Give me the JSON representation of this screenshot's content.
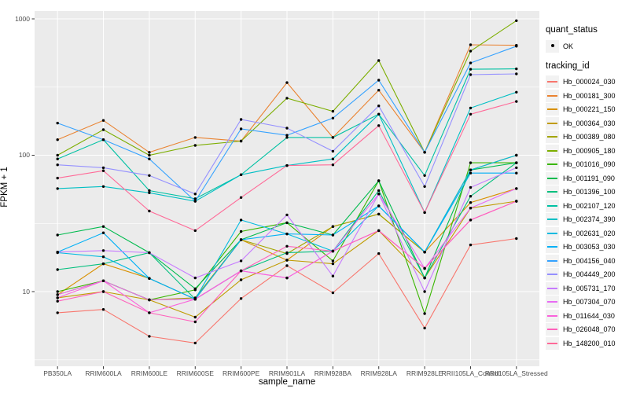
{
  "chart": {
    "y_axis_title": "FPKM + 1",
    "x_axis_title": "sample_name",
    "y_ticks": [
      "1000",
      "100",
      "10"
    ]
  },
  "legend": {
    "quant_status_title": "quant_status",
    "quant_ok_label": "OK",
    "tracking_id_title": "tracking_id"
  },
  "chart_data": {
    "type": "line",
    "xlabel": "sample_name",
    "ylabel": "FPKM + 1",
    "y_scale": "log10",
    "ylim": [
      2.8,
      1150
    ],
    "y_major_gridlines": [
      10,
      100,
      1000
    ],
    "y_minor_gridlines": [
      3.16,
      31.6,
      316
    ],
    "grid": true,
    "legend_position": "right",
    "panel_bg": "#EBEBEB",
    "grid_color": "#FFFFFF",
    "point_color": "#000000",
    "quant_status_value": "OK",
    "categories": [
      "PB350LA",
      "RRIM600LA",
      "RRIM600LE",
      "RRIM600SE",
      "RRIM600PE",
      "RRIM901LA",
      "RRIM928BA",
      "RRIM928LA",
      "RRIM928LE",
      "RRII105LA_Control",
      "RRII105LA_Stressed"
    ],
    "series": [
      {
        "name": "Hb_000024_030",
        "color": "#F8766D",
        "values": [
          7,
          7.4,
          4.7,
          4.2,
          8.9,
          15.5,
          9.8,
          19,
          5.4,
          22,
          24.5
        ]
      },
      {
        "name": "Hb_000181_300",
        "color": "#EA8331",
        "values": [
          130,
          180,
          105,
          135,
          127,
          341,
          135,
          300,
          105,
          645,
          640
        ]
      },
      {
        "name": "Hb_000221_150",
        "color": "#D89000",
        "values": [
          9.5,
          16,
          12.5,
          8.8,
          24,
          17,
          30,
          37,
          19.5,
          45,
          57
        ]
      },
      {
        "name": "Hb_000364_030",
        "color": "#C09B00",
        "values": [
          9,
          10,
          8.7,
          6.5,
          12.2,
          17,
          16,
          28,
          12.6,
          41,
          46
        ]
      },
      {
        "name": "Hb_000389_080",
        "color": "#A3A500",
        "values": [
          9.5,
          12,
          8.7,
          9,
          24,
          19,
          30,
          37,
          19.5,
          78,
          100
        ]
      },
      {
        "name": "Hb_000905_180",
        "color": "#7CAE00",
        "values": [
          100,
          154,
          100,
          118,
          127,
          262,
          210,
          495,
          105,
          580,
          970
        ]
      },
      {
        "name": "Hb_001016_090",
        "color": "#39B600",
        "values": [
          10,
          12,
          8.7,
          10.3,
          27.6,
          32,
          16.8,
          65,
          6.9,
          88,
          88
        ]
      },
      {
        "name": "Hb_001191_090",
        "color": "#00BB4E",
        "values": [
          26,
          30,
          19.3,
          10.5,
          24,
          32,
          26,
          65,
          12.6,
          78,
          88
        ]
      },
      {
        "name": "Hb_001396_100",
        "color": "#00BF7D",
        "values": [
          14.5,
          16,
          19.3,
          8.8,
          14.2,
          19.3,
          19.8,
          55,
          12.6,
          50,
          88
        ]
      },
      {
        "name": "Hb_002107_120",
        "color": "#00C1A3",
        "values": [
          94,
          130,
          55,
          48,
          72,
          135,
          135,
          200,
          71,
          427,
          430
        ]
      },
      {
        "name": "Hb_002374_390",
        "color": "#00BFC4",
        "values": [
          57,
          59,
          53,
          46,
          72,
          84,
          94,
          200,
          38,
          222,
          290
        ]
      },
      {
        "name": "Hb_002631_020",
        "color": "#00BAE0",
        "values": [
          19.3,
          18,
          12.5,
          8.8,
          33.5,
          26.5,
          19.8,
          42.5,
          19.5,
          78,
          100
        ]
      },
      {
        "name": "Hb_003053_030",
        "color": "#00B0F6",
        "values": [
          19.5,
          27,
          12.5,
          8.8,
          24,
          26.5,
          26,
          42.5,
          19.5,
          74,
          74
        ]
      },
      {
        "name": "Hb_004156_040",
        "color": "#35A2FF",
        "values": [
          172,
          130,
          94,
          46,
          156,
          140,
          187,
          355,
          105,
          475,
          630
        ]
      },
      {
        "name": "Hb_004449_200",
        "color": "#9590FF",
        "values": [
          85,
          81,
          71,
          52,
          183,
          158,
          107,
          230,
          59,
          390,
          395
        ]
      },
      {
        "name": "Hb_005731_170",
        "color": "#C77CFF",
        "values": [
          19.5,
          20,
          19.3,
          12.6,
          16.8,
          36.5,
          13,
          52,
          10,
          58,
          81
        ]
      },
      {
        "name": "Hb_007304_070",
        "color": "#E76BF3",
        "values": [
          9.5,
          12,
          8.7,
          8.8,
          14.2,
          12.6,
          19.8,
          52,
          14.8,
          41,
          57
        ]
      },
      {
        "name": "Hb_011644_030",
        "color": "#FA62DB",
        "values": [
          9,
          12,
          7,
          8.8,
          14.2,
          12.6,
          19.8,
          28,
          14.8,
          33.5,
          46
        ]
      },
      {
        "name": "Hb_026048_070",
        "color": "#FF62BC",
        "values": [
          8.5,
          10,
          7,
          6,
          14.2,
          21.5,
          19.8,
          28,
          14.8,
          33.5,
          46
        ]
      },
      {
        "name": "Hb_148200_010",
        "color": "#FF6A98",
        "values": [
          68,
          77,
          39,
          28,
          49,
          84,
          85,
          165,
          38,
          200,
          248
        ]
      }
    ]
  }
}
